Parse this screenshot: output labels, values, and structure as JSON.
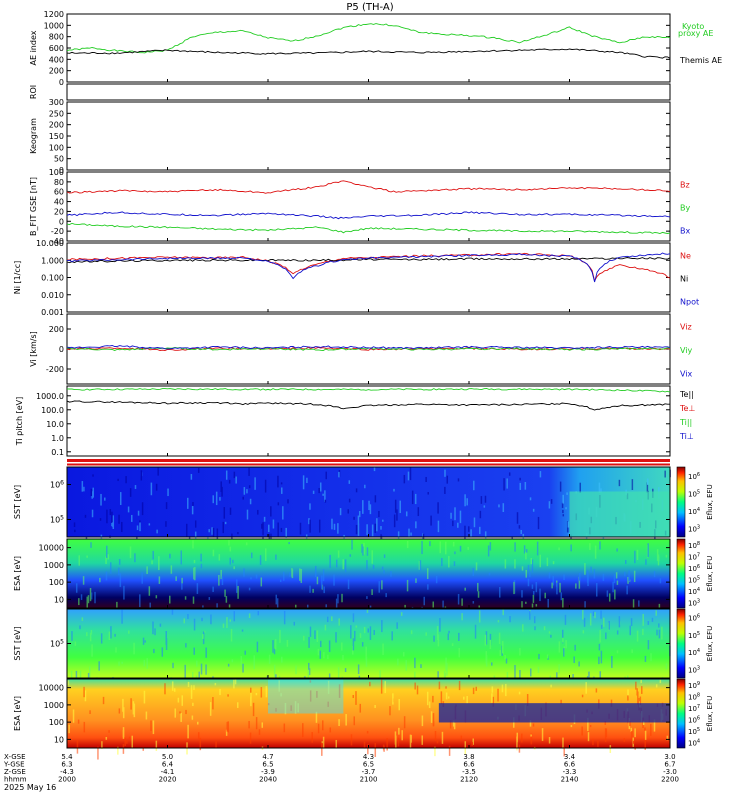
{
  "title": "P5 (TH-A)",
  "colors": {
    "green": "#22cc22",
    "black": "#000000",
    "red": "#dd1111",
    "blue": "#1111cc",
    "white": "#ffffff"
  },
  "x_axis": {
    "rows": [
      {
        "label": "X-GSE",
        "values": [
          "5.4",
          "5.0",
          "4.7",
          "4.3",
          "3.8",
          "3.4",
          "3.0"
        ]
      },
      {
        "label": "Y-GSE",
        "values": [
          "6.3",
          "6.4",
          "6.5",
          "6.5",
          "6.6",
          "6.6",
          "6.7"
        ]
      },
      {
        "label": "Z-GSE",
        "values": [
          "-4.3",
          "-4.1",
          "-3.9",
          "-3.7",
          "-3.5",
          "-3.3",
          "-3.0"
        ]
      },
      {
        "label": "hhmm",
        "values": [
          "2000",
          "2020",
          "2040",
          "2100",
          "2120",
          "2140",
          "2200"
        ]
      }
    ],
    "date": "2025 May 16",
    "ticks_minutes": [
      0,
      20,
      40,
      60,
      80,
      100,
      120
    ]
  },
  "chart_data": [
    {
      "type": "line",
      "name": "ae",
      "ylabel": "AE index",
      "yticks": [
        "0",
        "200",
        "400",
        "600",
        "800",
        "1000",
        "1200"
      ],
      "ylim": [
        0,
        1200
      ],
      "series": [
        {
          "name": "Kyoto proxy AE",
          "color": "#22cc22",
          "x": [
            0,
            5,
            10,
            15,
            20,
            25,
            30,
            35,
            40,
            45,
            50,
            55,
            60,
            65,
            70,
            75,
            80,
            85,
            90,
            95,
            100,
            105,
            110,
            115,
            120
          ],
          "y": [
            560,
            600,
            550,
            520,
            560,
            800,
            880,
            900,
            780,
            720,
            820,
            960,
            1030,
            1000,
            880,
            840,
            820,
            780,
            700,
            820,
            960,
            800,
            690,
            800,
            780
          ]
        },
        {
          "name": "Themis AE",
          "color": "#000000",
          "x": [
            0,
            10,
            20,
            30,
            40,
            50,
            60,
            70,
            80,
            90,
            100,
            110,
            115,
            120
          ],
          "y": [
            510,
            510,
            560,
            520,
            500,
            510,
            540,
            520,
            540,
            560,
            580,
            520,
            450,
            430
          ]
        }
      ]
    },
    {
      "type": "heatmap",
      "name": "roi",
      "ylabel": "ROI",
      "empty": true
    },
    {
      "type": "heatmap",
      "name": "keogram",
      "ylabel": "Keogram",
      "yticks": [
        "0",
        "50",
        "100",
        "150",
        "200",
        "250",
        "300"
      ],
      "ylim": [
        0,
        300
      ],
      "empty": true
    },
    {
      "type": "line",
      "name": "bfield",
      "ylabel": "B_FIT GSE [nT]",
      "yticks": [
        "-40",
        "-20",
        "0",
        "20",
        "40",
        "60",
        "80",
        "100"
      ],
      "ylim": [
        -40,
        100
      ],
      "series": [
        {
          "name": "Bz",
          "color": "#dd1111",
          "x": [
            0,
            10,
            20,
            30,
            40,
            50,
            55,
            60,
            65,
            70,
            80,
            90,
            100,
            110,
            120
          ],
          "y": [
            58,
            62,
            60,
            64,
            58,
            70,
            82,
            70,
            60,
            62,
            66,
            64,
            68,
            66,
            62
          ]
        },
        {
          "name": "By",
          "color": "#22cc22",
          "x": [
            0,
            10,
            20,
            30,
            40,
            50,
            55,
            60,
            70,
            80,
            90,
            100,
            110,
            120
          ],
          "y": [
            -5,
            -10,
            -12,
            -16,
            -18,
            -12,
            -22,
            -14,
            -16,
            -18,
            -20,
            -20,
            -22,
            -24
          ]
        },
        {
          "name": "Bx",
          "color": "#1111cc",
          "x": [
            0,
            10,
            20,
            30,
            40,
            50,
            55,
            60,
            70,
            80,
            90,
            100,
            110,
            120
          ],
          "y": [
            12,
            18,
            14,
            12,
            16,
            10,
            6,
            10,
            12,
            18,
            14,
            14,
            12,
            10
          ]
        }
      ]
    },
    {
      "type": "line",
      "name": "density",
      "ylabel": "Ni [1/cc]",
      "log": true,
      "yticks": [
        "0.001",
        "0.010",
        "0.100",
        "1.000",
        "10.000"
      ],
      "ylim": [
        0.001,
        10
      ],
      "series": [
        {
          "name": "Ne",
          "color": "#dd1111",
          "x": [
            0,
            10,
            20,
            30,
            35,
            40,
            45,
            50,
            55,
            60,
            70,
            80,
            90,
            100,
            105,
            110,
            120
          ],
          "y": [
            1.1,
            1.3,
            1.5,
            1.4,
            1.5,
            0.9,
            0.15,
            0.6,
            1.3,
            1.4,
            1.8,
            2.0,
            2.4,
            1.8,
            0.06,
            0.5,
            0.1
          ]
        },
        {
          "name": "Ni",
          "color": "#000000",
          "x": [
            0,
            10,
            20,
            30,
            40,
            50,
            60,
            70,
            80,
            90,
            100,
            110,
            120
          ],
          "y": [
            0.8,
            0.9,
            1.0,
            1.0,
            1.0,
            1.0,
            1.1,
            1.1,
            1.2,
            1.2,
            1.2,
            1.3,
            1.3
          ]
        },
        {
          "name": "Npot",
          "color": "#1111cc",
          "x": [
            0,
            10,
            20,
            30,
            35,
            40,
            45,
            50,
            55,
            60,
            70,
            80,
            90,
            100,
            105,
            110,
            120
          ],
          "y": [
            0.9,
            1.1,
            1.3,
            1.3,
            1.4,
            0.8,
            0.08,
            0.5,
            1.1,
            1.3,
            1.6,
            1.9,
            2.2,
            1.7,
            0.05,
            1.5,
            2.5
          ]
        }
      ]
    },
    {
      "type": "line",
      "name": "velocity",
      "ylabel": "Vi [km/s]",
      "yticks": [
        "-200",
        "0",
        "200"
      ],
      "ylim": [
        -350,
        350
      ],
      "series": [
        {
          "name": "Viz",
          "color": "#dd1111",
          "x": [
            0,
            10,
            20,
            30,
            40,
            50,
            60,
            70,
            80,
            90,
            100,
            110,
            120
          ],
          "y": [
            0,
            10,
            -10,
            5,
            0,
            10,
            -5,
            0,
            5,
            -5,
            0,
            5,
            0
          ]
        },
        {
          "name": "Viy",
          "color": "#22cc22",
          "x": [
            0,
            10,
            20,
            30,
            40,
            50,
            60,
            70,
            80,
            90,
            100,
            110,
            120
          ],
          "y": [
            5,
            -10,
            10,
            -5,
            5,
            -10,
            5,
            -5,
            0,
            5,
            -5,
            0,
            5
          ]
        },
        {
          "name": "Vix",
          "color": "#1111cc",
          "x": [
            0,
            10,
            20,
            30,
            40,
            50,
            60,
            70,
            80,
            90,
            100,
            110,
            120
          ],
          "y": [
            10,
            30,
            5,
            20,
            10,
            25,
            15,
            10,
            20,
            15,
            10,
            20,
            15
          ]
        }
      ]
    },
    {
      "type": "line",
      "name": "temperature",
      "ylabel": "Ti pitch [eV]",
      "log": true,
      "yticks": [
        "0.1",
        "1.0",
        "10.0",
        "100.0",
        "1000.0"
      ],
      "ylim": [
        0.05,
        5000
      ],
      "legend_only": [
        "Te⊥",
        "Ti||",
        "Ti⊥"
      ],
      "legend_colors": [
        "#dd1111",
        "#22cc22",
        "#1111cc"
      ],
      "series": [
        {
          "name": "Te||",
          "color": "#000000",
          "x": [
            0,
            10,
            20,
            30,
            35,
            40,
            50,
            55,
            60,
            70,
            80,
            90,
            100,
            105,
            110,
            115,
            120
          ],
          "y": [
            400,
            350,
            300,
            320,
            260,
            300,
            250,
            120,
            200,
            250,
            220,
            240,
            280,
            100,
            200,
            220,
            250
          ]
        },
        {
          "name": "green",
          "color": "#22cc22",
          "x": [
            0,
            20,
            40,
            60,
            80,
            100,
            110,
            120
          ],
          "y": [
            2800,
            3000,
            2900,
            2800,
            3000,
            2900,
            2500,
            2000
          ]
        }
      ]
    },
    {
      "type": "heatmap",
      "name": "sst-ion",
      "ylabel": "SST [eV]",
      "log": true,
      "yticks": [
        "10^5",
        "10^6"
      ],
      "cbar_label": "Eflux, EFU",
      "cbar_ticks": [
        "10^3",
        "10^4",
        "10^5",
        "10^6"
      ],
      "base": "blue"
    },
    {
      "type": "heatmap",
      "name": "esa-ion",
      "ylabel": "ESA [eV]",
      "log": true,
      "yticks": [
        "10",
        "100",
        "1000",
        "10000"
      ],
      "cbar_label": "Eflux, EFU",
      "cbar_ticks": [
        "10^3",
        "10^4",
        "10^5",
        "10^6",
        "10^7",
        "10^8"
      ],
      "base": "green"
    },
    {
      "type": "heatmap",
      "name": "sst-electron",
      "ylabel": "SST [eV]",
      "log": true,
      "yticks": [
        "10^5"
      ],
      "cbar_label": "Eflux, EFU",
      "cbar_ticks": [
        "10^3",
        "10^4",
        "10^5",
        "10^6"
      ],
      "base": "green"
    },
    {
      "type": "heatmap",
      "name": "esa-electron",
      "ylabel": "ESA [eV]",
      "log": true,
      "yticks": [
        "10",
        "100",
        "1000",
        "10000"
      ],
      "cbar_label": "Eflux, EFU",
      "cbar_ticks": [
        "10^4",
        "10^5",
        "10^6",
        "10^7",
        "10^8",
        "10^9"
      ],
      "base": "yellow"
    }
  ]
}
